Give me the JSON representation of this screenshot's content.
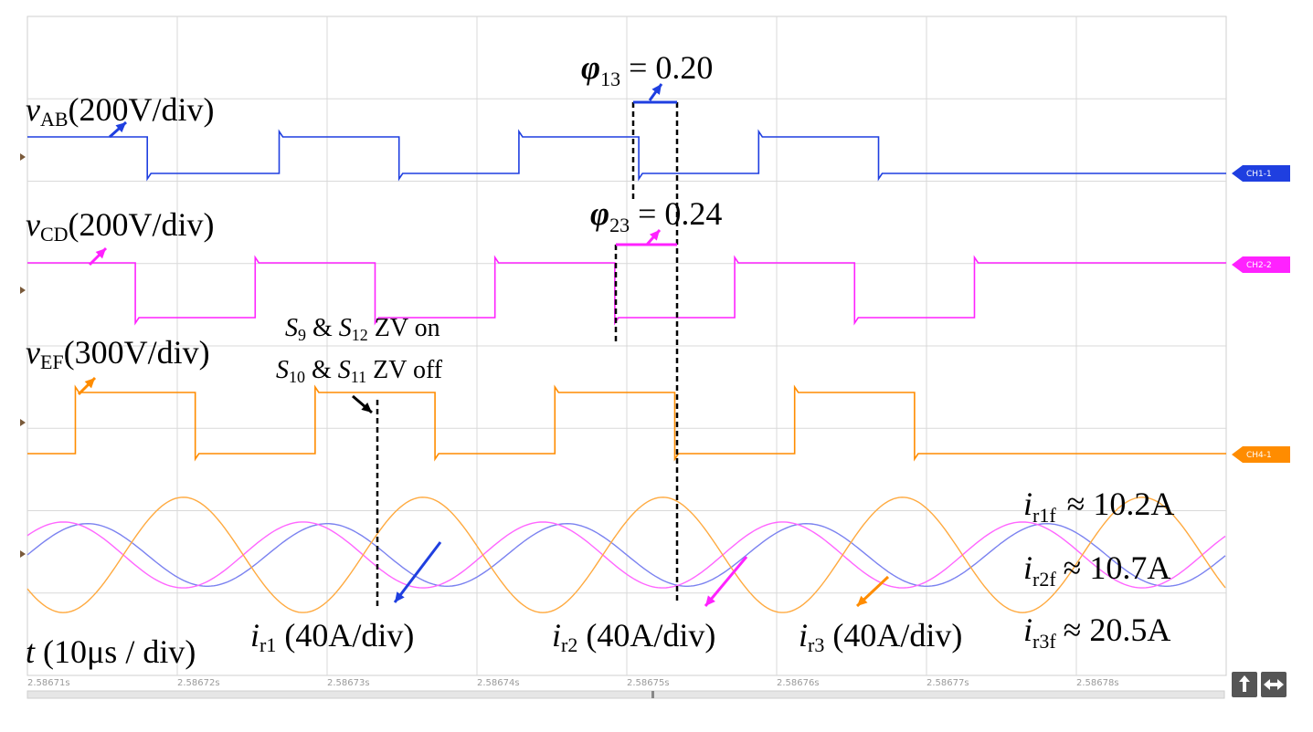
{
  "chart_data": {
    "type": "line",
    "x_unit": "s",
    "x_range": [
      2.5867,
      2.5868
    ],
    "x_ticks": [
      "2.58671s",
      "2.58672s",
      "2.58673s",
      "2.58674s",
      "2.58675s",
      "2.58676s",
      "2.58677s",
      "2.58678s"
    ],
    "grid": true,
    "time_scale_label": {
      "var": "t",
      "text": " (10μs / div)"
    },
    "channels": [
      {
        "id": "vab",
        "tag": "CH1-1",
        "color": "#1f3fe0",
        "var": "v",
        "sub": "AB",
        "scale": "(200V/div)",
        "high_intervals": [
          [
            2.5867,
            2.58671
          ],
          [
            2.586721,
            2.586731
          ],
          [
            2.586741,
            2.586751
          ],
          [
            2.586761,
            2.586771
          ]
        ]
      },
      {
        "id": "vcd",
        "tag": "CH2-2",
        "color": "#ff22ff",
        "var": "v",
        "sub": "CD",
        "scale": "(200V/div)",
        "high_intervals": [
          [
            2.5867,
            2.586709
          ],
          [
            2.586719,
            2.586729
          ],
          [
            2.586739,
            2.586749
          ],
          [
            2.586759,
            2.586769
          ],
          [
            2.586779,
            2.5868
          ]
        ]
      },
      {
        "id": "vef",
        "tag": "CH4-1",
        "color": "#ff8c00",
        "var": "v",
        "sub": "EF",
        "scale": "(300V/div)",
        "high_intervals": [
          [
            2.586704,
            2.586714
          ],
          [
            2.586724,
            2.586734
          ],
          [
            2.586744,
            2.586754
          ],
          [
            2.586764,
            2.586774
          ]
        ]
      }
    ],
    "currents": [
      {
        "id": "ir1",
        "color": "#7b82f0",
        "var": "i",
        "sub": "r1",
        "scale": " (40A/div)",
        "peak_time": 2.586705,
        "period": 2e-05,
        "amp_div": 0.38,
        "rms_label_sub": "r1f",
        "rms_label": "≈ 10.2A"
      },
      {
        "id": "ir2",
        "color": "#ff66ff",
        "var": "i",
        "sub": "r2",
        "scale": " (40A/div)",
        "peak_time": 2.586703,
        "period": 2e-05,
        "amp_div": 0.4,
        "rms_label_sub": "r2f",
        "rms_label": "≈ 10.7A"
      },
      {
        "id": "ir3",
        "color": "#ffaa40",
        "var": "i",
        "sub": "r3",
        "scale": " (40A/div)",
        "peak_time": 2.586733,
        "period": 2e-05,
        "amp_div": 0.7,
        "rms_label_sub": "r3f",
        "rms_label": "≈ 20.5A"
      }
    ],
    "annotations": {
      "phi13": {
        "sym": "φ",
        "sub": "13",
        "text": " = 0.20"
      },
      "phi23": {
        "sym": "φ",
        "sub": "23",
        "text": " = 0.24"
      },
      "zvs_line1": {
        "s1": "S",
        "s1_sub": "9",
        "amp": " & ",
        "s2": "S",
        "s2_sub": "12",
        "tail": " ZV on"
      },
      "zvs_line2": {
        "s1": "S",
        "s1_sub": "10",
        "amp": " & ",
        "s2": "S",
        "s2_sub": "11",
        "tail": " ZV off"
      }
    }
  }
}
